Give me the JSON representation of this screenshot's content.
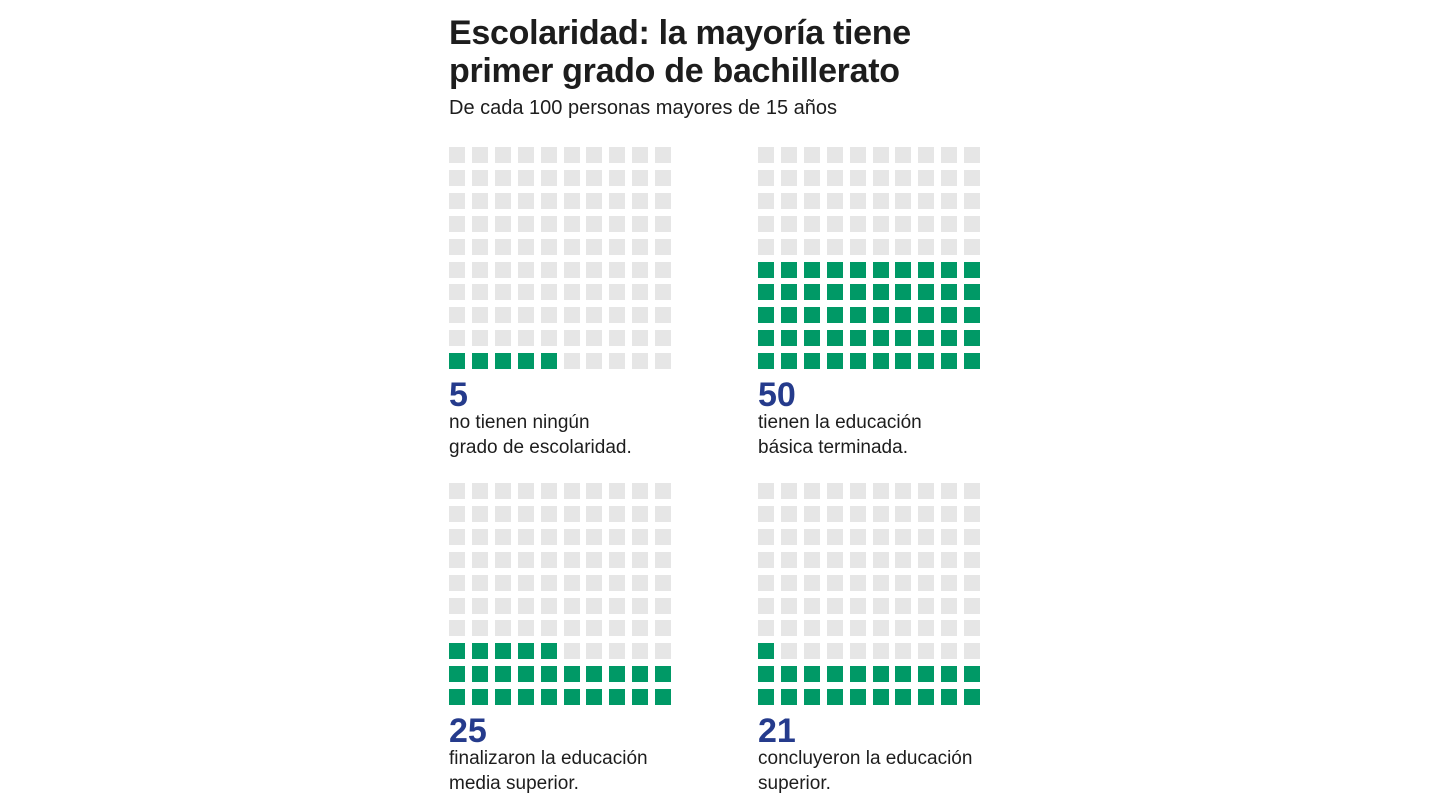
{
  "title": "Escolaridad: la mayoría tiene primer grado de bachillerato",
  "subtitle": "De cada 100 personas mayores de 15 años",
  "colors": {
    "filled": "#009966",
    "empty": "#e6e6e6",
    "number": "#253b8c"
  },
  "chart_data": {
    "type": "waffle",
    "total": 100,
    "grid": {
      "rows": 10,
      "cols": 10,
      "fill_order": "bottom-up, left-to-right"
    },
    "panels": [
      {
        "value": 5,
        "number_label": "5",
        "line1": "no tienen ningún",
        "line2": "grado de escolaridad."
      },
      {
        "value": 50,
        "number_label": "50",
        "line1": "tienen la educación",
        "line2": "básica terminada."
      },
      {
        "value": 25,
        "number_label": "25",
        "line1": "finalizaron la educación",
        "line2": "media superior."
      },
      {
        "value": 21,
        "number_label": "21",
        "line1": "concluyeron la educación",
        "line2": "superior."
      }
    ]
  }
}
